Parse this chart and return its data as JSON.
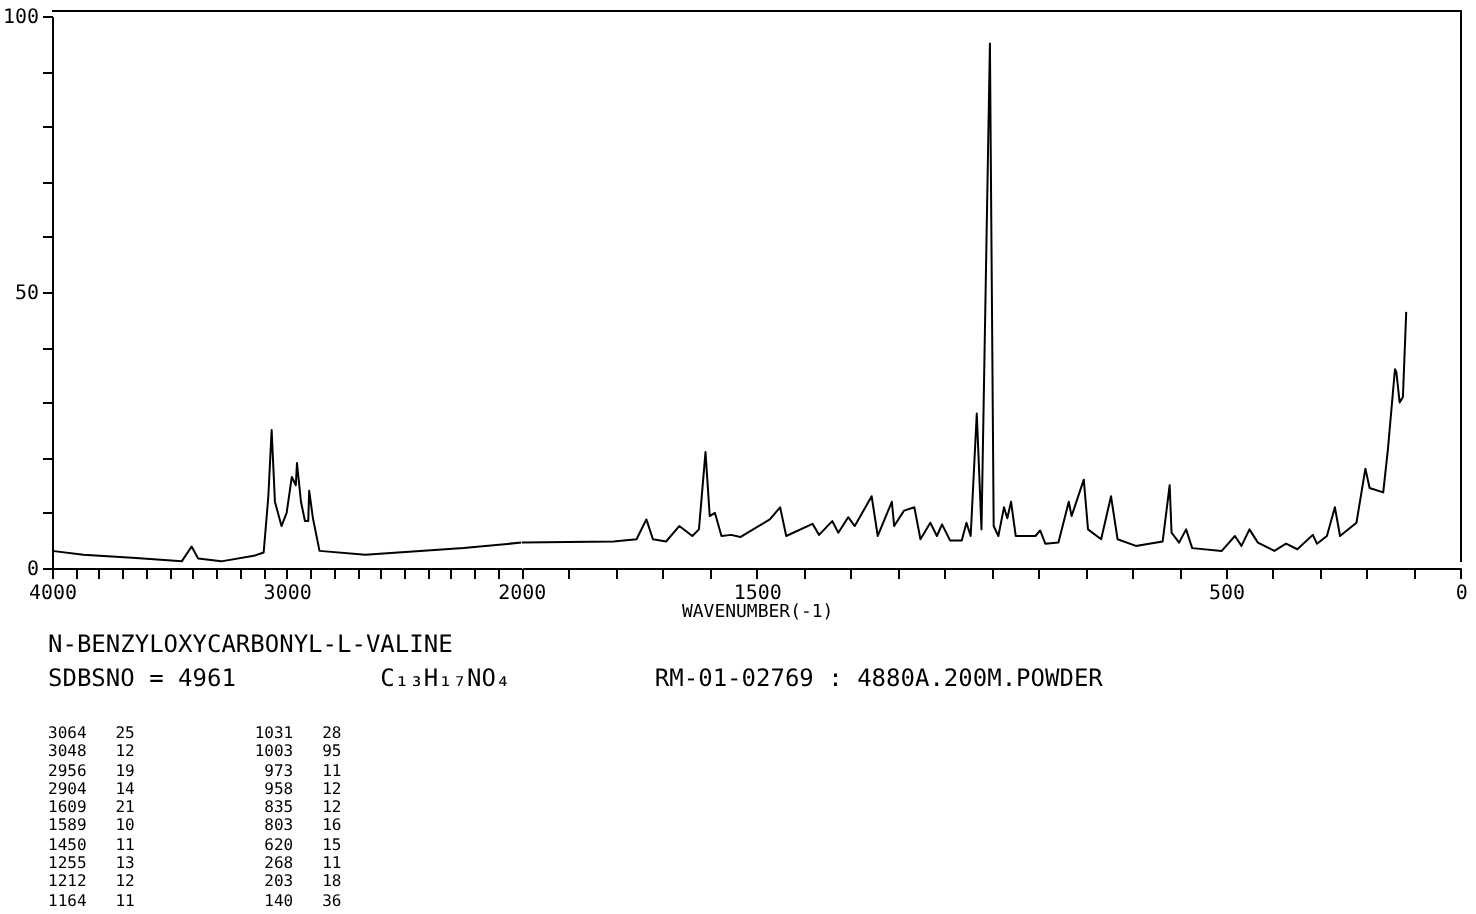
{
  "chart_data": [
    {
      "type": "line",
      "title": "N-BENZYLOXYCARBONYL-L-VALINE",
      "subtitle": "SDBSNO = 4961          C₁₃H₁₇NO₄          RM-01-02769 : 4880A.200M.POWDER",
      "annotations": [
        "3064   25",
        "3048   12",
        "2956   19",
        "2904   14",
        "1609   21",
        "1589   10",
        "1450   11",
        "1255   13",
        "1212   12",
        "1164   11",
        "1031   28",
        "1003   95",
        " 973   11",
        " 958   12",
        " 835   12",
        " 803   16",
        " 620   15",
        " 268   11",
        " 203   18",
        " 140   36"
      ],
      "x": [
        4000,
        3866,
        3642,
        3447,
        3405,
        3377,
        3279,
        3140,
        3098,
        3078,
        3064,
        3050,
        3022,
        3000,
        2978,
        2961,
        2956,
        2939,
        2922,
        2908,
        2904,
        2888,
        2860,
        2665,
        2525,
        2246,
        2000
      ],
      "series": [
        {
          "color": "#000000",
          "values": [
            3.1,
            2.4,
            1.8,
            1.2,
            3.9,
            1.7,
            1.2,
            2.2,
            2.8,
            13,
            25,
            12,
            7.6,
            10,
            16.5,
            15,
            19,
            12,
            8.5,
            8.5,
            14,
            9,
            3.1,
            2.4,
            2.8,
            3.6,
            4.6
          ]
        }
      ],
      "xlim": [
        4000,
        2000
      ],
      "xticks": [
        4000,
        {
          "value": 3900,
          "label": null
        },
        {
          "value": 3800,
          "label": null
        },
        {
          "value": 3700,
          "label": null
        },
        {
          "value": 3600,
          "label": null
        },
        {
          "value": 3500,
          "label": null
        },
        {
          "value": 3400,
          "label": null
        },
        {
          "value": 3300,
          "label": null
        },
        {
          "value": 3200,
          "label": null
        },
        {
          "value": 3100,
          "label": null
        },
        3000,
        {
          "value": 2900,
          "label": null
        },
        {
          "value": 2800,
          "label": null
        },
        {
          "value": 2700,
          "label": null
        },
        {
          "value": 2600,
          "label": null
        },
        {
          "value": 2500,
          "label": null
        },
        {
          "value": 2400,
          "label": null
        },
        {
          "value": 2300,
          "label": null
        },
        {
          "value": 2200,
          "label": null
        },
        {
          "value": 2100,
          "label": null
        },
        2000
      ],
      "ylim": [
        0,
        100
      ],
      "yticks": [
        0,
        {
          "value": 10,
          "label": null
        },
        {
          "value": 20,
          "label": null
        },
        {
          "value": 30,
          "label": null
        },
        {
          "value": 40,
          "label": null
        },
        50,
        {
          "value": 60,
          "label": null
        },
        {
          "value": 70,
          "label": null
        },
        {
          "value": 80,
          "label": null
        },
        {
          "value": 90,
          "label": null
        },
        100
      ],
      "grid": false,
      "marker": "none",
      "line_style": "solid"
    },
    {
      "type": "line",
      "xlabel": "WAVENUMBER(-1)",
      "x": [
        2000,
        1805,
        1756,
        1735,
        1721,
        1693,
        1665,
        1637,
        1623,
        1609,
        1600,
        1589,
        1575,
        1554,
        1535,
        1472,
        1450,
        1437,
        1381,
        1367,
        1339,
        1326,
        1305,
        1291,
        1255,
        1242,
        1212,
        1207,
        1186,
        1164,
        1151,
        1130,
        1116,
        1105,
        1088,
        1063,
        1053,
        1044,
        1031,
        1021,
        1003,
        995,
        985,
        973,
        966,
        958,
        948,
        906,
        896,
        885,
        857,
        835,
        829,
        803,
        794,
        766,
        745,
        731,
        692,
        635,
        620,
        616,
        600,
        585,
        572,
        509,
        481,
        467,
        450,
        432,
        397,
        372,
        348,
        315,
        306,
        285,
        268,
        257,
        222,
        203,
        194,
        165,
        155,
        140,
        137,
        130,
        123,
        116
      ],
      "series": [
        {
          "color": "#000000",
          "values": [
            4.6,
            4.8,
            5.2,
            8.8,
            5.2,
            4.8,
            7.6,
            5.8,
            7,
            21,
            9.4,
            10,
            5.8,
            6,
            5.6,
            8.8,
            11,
            5.8,
            8,
            6,
            8.5,
            6.4,
            9.2,
            7.6,
            13,
            5.8,
            12,
            7.6,
            10.4,
            11,
            5.2,
            8.2,
            5.8,
            7.9,
            5,
            5,
            8.2,
            5.8,
            28,
            7,
            95,
            7.6,
            5.8,
            11,
            9,
            12,
            5.8,
            5.8,
            6.8,
            4.4,
            4.6,
            12,
            9.4,
            16,
            7,
            5.2,
            13,
            5.2,
            4,
            4.8,
            15,
            6.4,
            4.6,
            7,
            3.6,
            3.1,
            5.8,
            4,
            7,
            4.6,
            3.1,
            4.4,
            3.4,
            6,
            4.4,
            5.8,
            11,
            5.8,
            8.2,
            18,
            14.5,
            13.7,
            21.5,
            36,
            35.5,
            30,
            31,
            46.4
          ]
        }
      ],
      "xlim": [
        2000,
        0
      ],
      "xticks": [
        {
          "value": 1900,
          "label": null
        },
        {
          "value": 1800,
          "label": null
        },
        {
          "value": 1700,
          "label": null
        },
        {
          "value": 1600,
          "label": null
        },
        1500,
        {
          "value": 1400,
          "label": null
        },
        {
          "value": 1300,
          "label": null
        },
        {
          "value": 1200,
          "label": null
        },
        {
          "value": 1100,
          "label": null
        },
        {
          "value": 1000,
          "label": null
        },
        {
          "value": 900,
          "label": null
        },
        {
          "value": 800,
          "label": null
        },
        {
          "value": 700,
          "label": null
        },
        {
          "value": 600,
          "label": null
        },
        500,
        {
          "value": 400,
          "label": null
        },
        {
          "value": 300,
          "label": null
        },
        {
          "value": 200,
          "label": null
        },
        {
          "value": 100,
          "label": null
        },
        0
      ],
      "ylim": [
        0,
        100
      ],
      "tick_labels": "x",
      "grid": false,
      "marker": "none",
      "line_style": "solid"
    }
  ]
}
